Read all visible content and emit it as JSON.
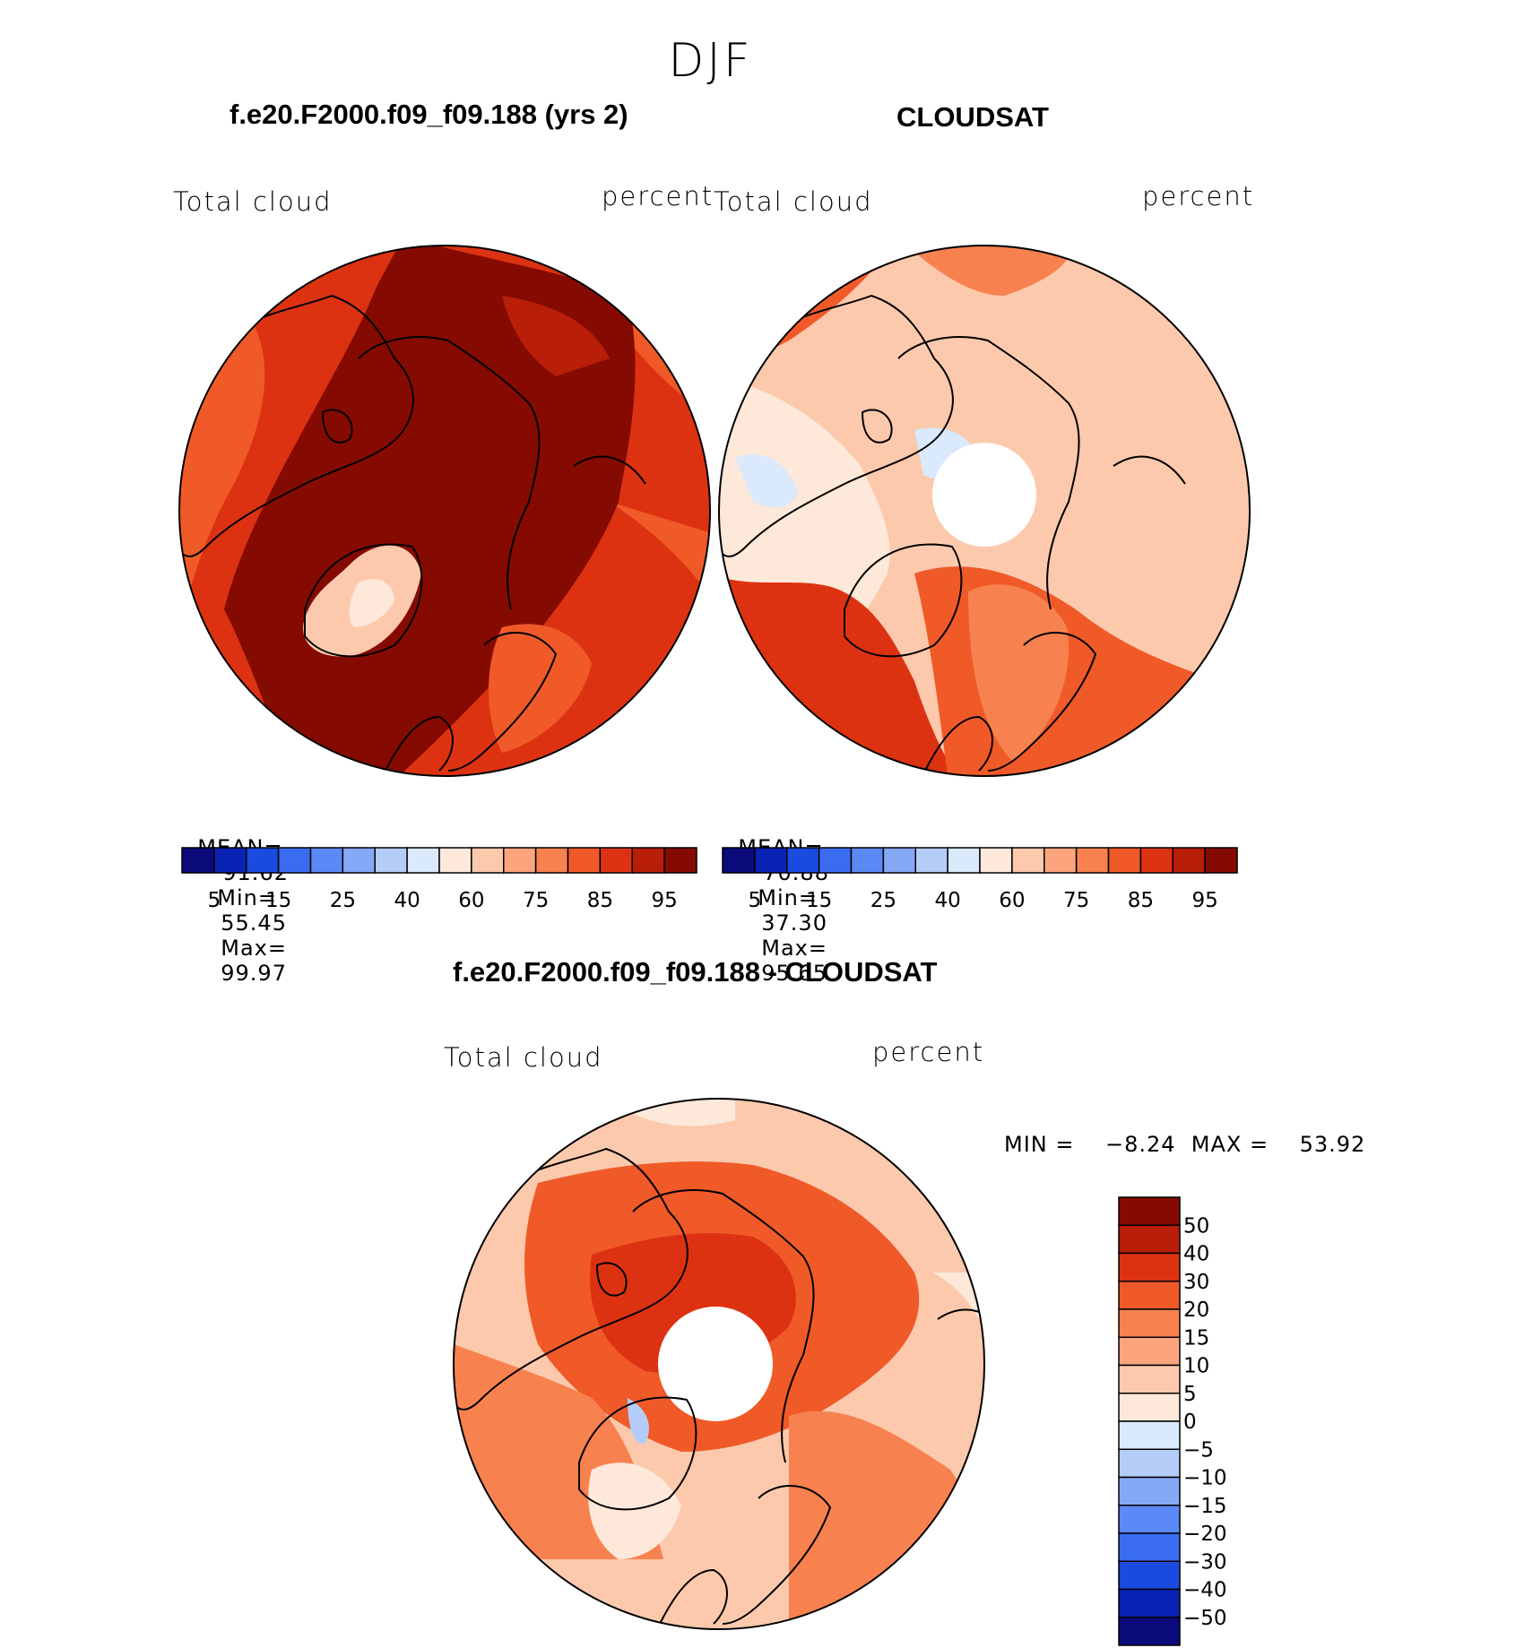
{
  "title": "DJF",
  "panels": [
    {
      "title": "f.e20.F2000.f09_f09.188 (yrs 2)",
      "left_label": "Total cloud",
      "right_label": "percent",
      "stats": {
        "mean_label": "MEAN=",
        "mean": "91.62",
        "min_label": "Min=",
        "min": "55.45",
        "max_label": "Max=",
        "max": "99.97"
      }
    },
    {
      "title": "CLOUDSAT",
      "left_label": "Total cloud",
      "right_label": "percent",
      "stats": {
        "mean_label": "MEAN=",
        "mean": "70.88",
        "min_label": "Min=",
        "min": "37.30",
        "max_label": "Max=",
        "max": "95.65"
      }
    },
    {
      "title": "f.e20.F2000.f09_f09.188 - CLOUDSAT",
      "left_label": "Total cloud",
      "right_label": "percent",
      "stats_text": "MIN =    −8.24  MAX =    53.92"
    }
  ],
  "abs_colorbar": {
    "colors": [
      "#0a0a7a",
      "#0a22b4",
      "#1a4be0",
      "#3a6cf2",
      "#5b89f5",
      "#86a9f7",
      "#b4cdf8",
      "#dae9fb",
      "#fde8da",
      "#fcc9ad",
      "#fba47d",
      "#f7824f",
      "#f05a28",
      "#dd3212",
      "#b81e08",
      "#850b02"
    ],
    "labels": [
      "5",
      "15",
      "25",
      "40",
      "60",
      "75",
      "85",
      "95"
    ]
  },
  "diff_colorbar": {
    "colors": [
      "#850b02",
      "#b81e08",
      "#dd3212",
      "#f05a28",
      "#f7824f",
      "#fba47d",
      "#fcc9ad",
      "#fde8da",
      "#dae9fb",
      "#b4cdf8",
      "#86a9f7",
      "#5b89f5",
      "#3a6cf2",
      "#1a4be0",
      "#0a22b4",
      "#0a0a7a"
    ],
    "labels": [
      "50",
      "40",
      "30",
      "20",
      "15",
      "10",
      "5",
      "0",
      "−5",
      "−10",
      "−15",
      "−20",
      "−30",
      "−40",
      "−50"
    ]
  }
}
